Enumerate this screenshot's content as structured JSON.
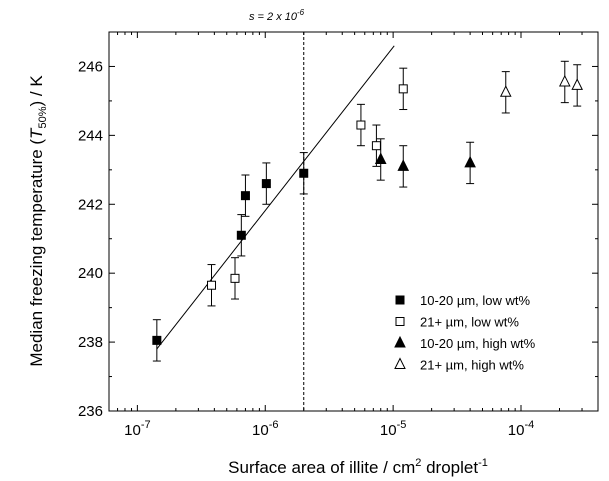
{
  "chart_data": {
    "type": "scatter",
    "title": "",
    "xlabel": "Surface area of illite / cm² droplet⁻¹",
    "ylabel": "Median freezing temperature (T50%) / K",
    "xscale": "log",
    "xlim": [
      6e-08,
      0.0004
    ],
    "ylim": [
      236,
      247
    ],
    "x_ticks": [
      1e-07,
      1e-06,
      1e-05,
      0.0001
    ],
    "x_tick_labels": [
      {
        "base": "10",
        "exp": "-7"
      },
      {
        "base": "10",
        "exp": "-6"
      },
      {
        "base": "10",
        "exp": "-5"
      },
      {
        "base": "10",
        "exp": "-4"
      }
    ],
    "y_ticks": [
      236,
      238,
      240,
      242,
      244,
      246
    ],
    "y_tick_labels": [
      "236",
      "238",
      "240",
      "242",
      "244",
      "246"
    ],
    "grid": false,
    "legend_position": "lower-right",
    "series": [
      {
        "name": "10-20 µm, low wt%",
        "marker": "square-filled",
        "points": [
          {
            "x": 1.42e-07,
            "y": 238.05,
            "err": 0.6
          },
          {
            "x": 6.5e-07,
            "y": 241.1,
            "err": 0.6
          },
          {
            "x": 7e-07,
            "y": 242.25,
            "err": 0.6
          },
          {
            "x": 1.02e-06,
            "y": 242.6,
            "err": 0.6
          },
          {
            "x": 2e-06,
            "y": 242.9,
            "err": 0.6
          }
        ]
      },
      {
        "name": "21+ µm, low wt%",
        "marker": "square-open",
        "points": [
          {
            "x": 3.8e-07,
            "y": 239.65,
            "err": 0.6
          },
          {
            "x": 5.8e-07,
            "y": 239.85,
            "err": 0.6
          },
          {
            "x": 5.6e-06,
            "y": 244.3,
            "err": 0.6
          },
          {
            "x": 7.4e-06,
            "y": 243.7,
            "err": 0.6
          },
          {
            "x": 1.2e-05,
            "y": 245.35,
            "err": 0.6
          }
        ]
      },
      {
        "name": "10-20 µm, high wt%",
        "marker": "triangle-filled",
        "points": [
          {
            "x": 8e-06,
            "y": 243.3,
            "err": 0.6
          },
          {
            "x": 1.2e-05,
            "y": 243.1,
            "err": 0.6
          },
          {
            "x": 4e-05,
            "y": 243.2,
            "err": 0.6
          }
        ]
      },
      {
        "name": "21+ µm, high wt%",
        "marker": "triangle-open",
        "points": [
          {
            "x": 7.6e-05,
            "y": 245.25,
            "err": 0.6
          },
          {
            "x": 0.00022,
            "y": 245.55,
            "err": 0.6
          },
          {
            "x": 0.000275,
            "y": 245.45,
            "err": 0.6
          }
        ]
      }
    ],
    "fit_line": {
      "x": [
        1.42e-07,
        1.02e-05
      ],
      "y": [
        237.8,
        246.6
      ]
    },
    "vline": {
      "x": 2e-06,
      "label": "s = 2 x 10",
      "label_exp": "-6"
    }
  }
}
